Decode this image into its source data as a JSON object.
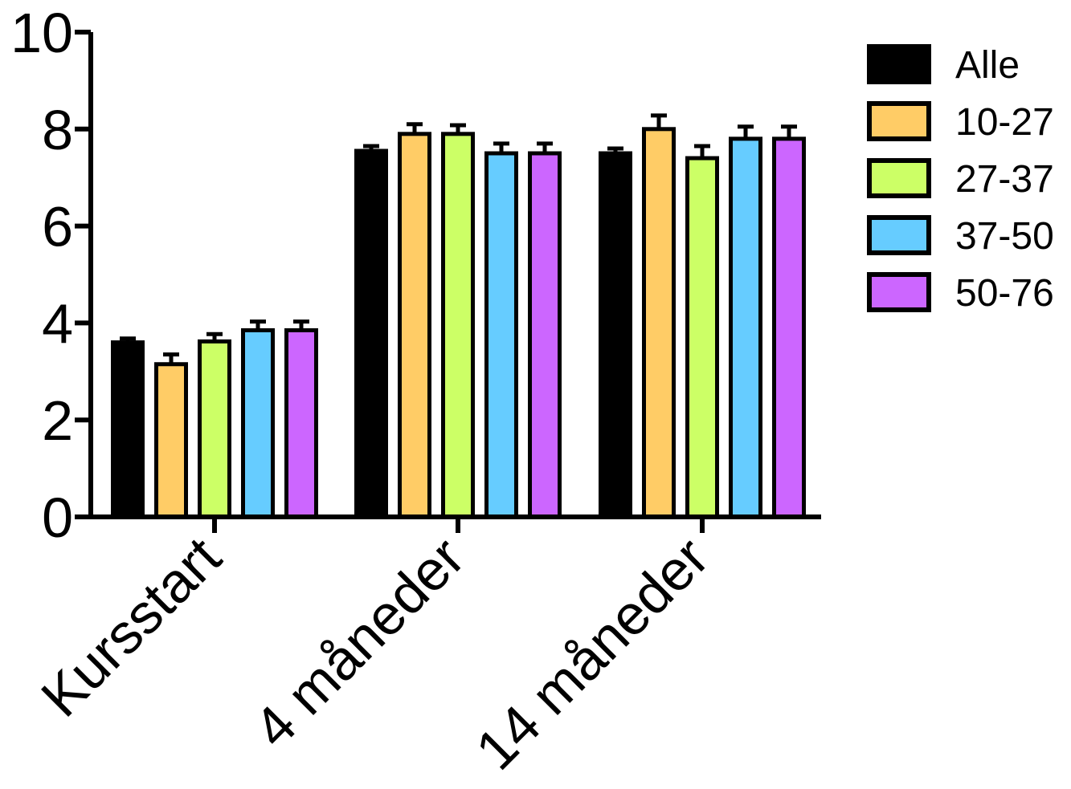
{
  "chart_data": {
    "type": "bar",
    "title": "",
    "xlabel": "",
    "ylabel": "",
    "categories": [
      "Kursstart",
      "4 måneder",
      "14 måneder"
    ],
    "ylim": [
      0,
      10
    ],
    "yticks": [
      0,
      2,
      4,
      6,
      8,
      10
    ],
    "grid": false,
    "legend_position": "top-right",
    "error_bars": true,
    "series": [
      {
        "name": "Alle",
        "color": "#000000",
        "values": [
          3.6,
          7.55,
          7.5
        ],
        "errors": [
          0.08,
          0.1,
          0.1
        ]
      },
      {
        "name": "10-27",
        "color": "#FFCC66",
        "values": [
          3.15,
          7.9,
          8.0
        ],
        "errors": [
          0.2,
          0.2,
          0.28
        ]
      },
      {
        "name": "27-37",
        "color": "#CCFF66",
        "values": [
          3.62,
          7.9,
          7.4
        ],
        "errors": [
          0.15,
          0.18,
          0.25
        ]
      },
      {
        "name": "37-50",
        "color": "#66CCFF",
        "values": [
          3.85,
          7.5,
          7.8
        ],
        "errors": [
          0.18,
          0.2,
          0.25
        ]
      },
      {
        "name": "50-76",
        "color": "#CC66FF",
        "values": [
          3.85,
          7.5,
          7.8
        ],
        "errors": [
          0.18,
          0.2,
          0.25
        ]
      }
    ]
  }
}
